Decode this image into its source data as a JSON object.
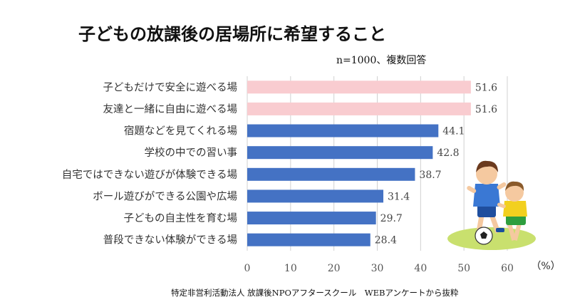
{
  "title": "子どもの放課後の居場所に希望すること",
  "note": "n=1000、複数回答",
  "source": "特定非営利活動法人 放課後NPOアフタースクール　WEBアンケートから抜粋",
  "colors": {
    "highlight": "#F9CCD0",
    "bar": "#4472C4",
    "grid": "#D0D0D0",
    "axis_text": "#555555"
  },
  "chart_data": {
    "type": "bar",
    "orientation": "horizontal",
    "categories": [
      "子どもだけで安全に遊べる場",
      "友達と一緒に自由に遊べる場",
      "宿題などを見てくれる場",
      "学校の中での習い事",
      "自宅ではできない遊びが体験できる場",
      "ボール遊びができる公園や広場",
      "子どもの自主性を育む場",
      "普段できない体験ができる場"
    ],
    "values": [
      51.6,
      51.6,
      44.1,
      42.8,
      38.7,
      31.4,
      29.7,
      28.4
    ],
    "value_labels": [
      "51.6",
      "51.6",
      "44.1",
      "42.8",
      "38.7",
      "31.4",
      "29.7",
      "28.4"
    ],
    "highlighted": [
      true,
      true,
      false,
      false,
      false,
      false,
      false,
      false
    ],
    "xlim": [
      0,
      60
    ],
    "xticks": [
      "0",
      "10",
      "20",
      "30",
      "40",
      "50",
      "60"
    ],
    "x_unit": "（%）",
    "grid": true
  },
  "illustration": "two-boys-playing-soccer"
}
